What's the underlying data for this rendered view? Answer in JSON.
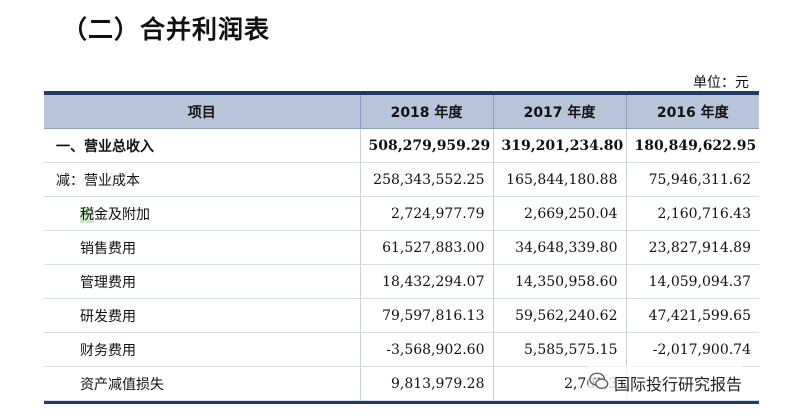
{
  "title": "（二）合并利润表",
  "unit": "单位：元",
  "columns": [
    "项目",
    "2018 年度",
    "2017 年度",
    "2016 年度"
  ],
  "rows": [
    {
      "label": "一、营业总收入",
      "v2018": "508,279,959.29",
      "v2017": "319,201,234.80",
      "v2016": "180,849,622.95"
    },
    {
      "label": "减：营业成本",
      "v2018": "258,343,552.25",
      "v2017": "165,844,180.88",
      "v2016": "75,946,311.62"
    },
    {
      "label_hl": "税",
      "label": "金及附加",
      "v2018": "2,724,977.79",
      "v2017": "2,669,250.04",
      "v2016": "2,160,716.43"
    },
    {
      "label": "销售费用",
      "v2018": "61,527,883.00",
      "v2017": "34,648,339.80",
      "v2016": "23,827,914.89"
    },
    {
      "label": "管理费用",
      "v2018": "18,432,294.07",
      "v2017": "14,350,958.60",
      "v2016": "14,059,094.37"
    },
    {
      "label": "研发费用",
      "v2018": "79,597,816.13",
      "v2017": "59,562,240.62",
      "v2016": "47,421,599.65"
    },
    {
      "label": "财务费用",
      "v2018": "-3,568,902.60",
      "v2017": "5,585,575.15",
      "v2016": "-2,017,900.74"
    },
    {
      "label": "资产减值损失",
      "v2018": "9,813,979.28",
      "v2017": "2,707,3",
      "v2016": ""
    }
  ],
  "watermark": {
    "text": "国际投行研究报告",
    "icon": "wechat-icon"
  }
}
